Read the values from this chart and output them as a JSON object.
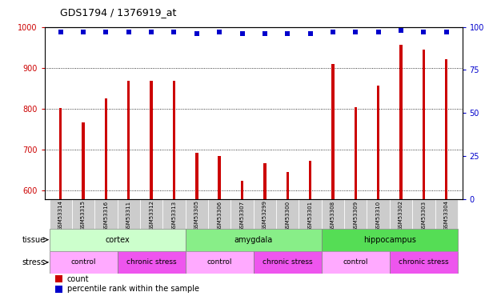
{
  "title": "GDS1794 / 1376919_at",
  "samples": [
    "GSM53314",
    "GSM53315",
    "GSM53316",
    "GSM53311",
    "GSM53312",
    "GSM53313",
    "GSM53305",
    "GSM53306",
    "GSM53307",
    "GSM53299",
    "GSM53300",
    "GSM53301",
    "GSM53308",
    "GSM53309",
    "GSM53310",
    "GSM53302",
    "GSM53303",
    "GSM53304"
  ],
  "counts": [
    803,
    767,
    825,
    868,
    868,
    868,
    693,
    685,
    624,
    668,
    645,
    674,
    910,
    805,
    857,
    957,
    944,
    921
  ],
  "percentile_ranks": [
    97,
    97,
    97,
    97,
    97,
    97,
    96,
    97,
    96,
    96,
    96,
    96,
    97,
    97,
    97,
    98,
    97,
    97
  ],
  "ylim_left": [
    580,
    1000
  ],
  "ylim_right": [
    0,
    100
  ],
  "yticks_left": [
    600,
    700,
    800,
    900,
    1000
  ],
  "yticks_right": [
    0,
    25,
    50,
    75,
    100
  ],
  "bar_color": "#cc0000",
  "dot_color": "#0000cc",
  "background_color": "#ffffff",
  "axis_label_color_left": "#cc0000",
  "axis_label_color_right": "#0000cc",
  "tissues": [
    {
      "label": "cortex",
      "start": 0,
      "end": 6,
      "color": "#ccffcc"
    },
    {
      "label": "amygdala",
      "start": 6,
      "end": 12,
      "color": "#88ee88"
    },
    {
      "label": "hippocampus",
      "start": 12,
      "end": 18,
      "color": "#55dd55"
    }
  ],
  "stress_groups": [
    {
      "label": "control",
      "start": 0,
      "end": 3,
      "color": "#ffaaff"
    },
    {
      "label": "chronic stress",
      "start": 3,
      "end": 6,
      "color": "#ee55ee"
    },
    {
      "label": "control",
      "start": 6,
      "end": 9,
      "color": "#ffaaff"
    },
    {
      "label": "chronic stress",
      "start": 9,
      "end": 12,
      "color": "#ee55ee"
    },
    {
      "label": "control",
      "start": 12,
      "end": 15,
      "color": "#ffaaff"
    },
    {
      "label": "chronic stress",
      "start": 15,
      "end": 18,
      "color": "#ee55ee"
    }
  ],
  "xticklabel_bg": "#cccccc",
  "tissue_label": "tissue",
  "stress_label": "stress",
  "legend_count_color": "#cc0000",
  "legend_dot_color": "#0000cc",
  "bar_width": 0.12,
  "dot_size": 18
}
